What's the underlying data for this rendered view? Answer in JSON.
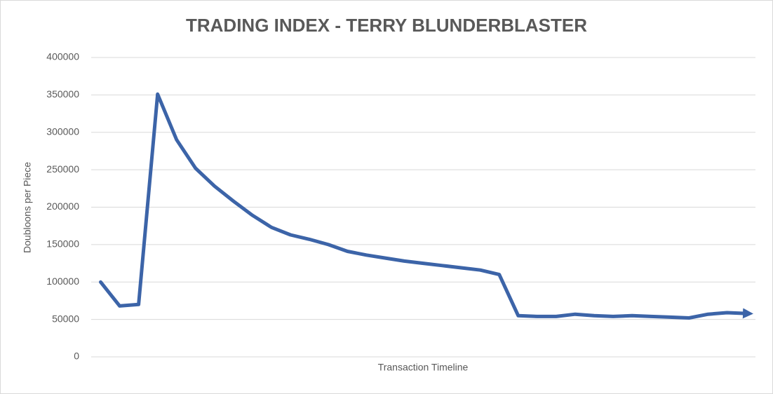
{
  "chart_data": {
    "type": "line",
    "title": "TRADING INDEX - TERRY BLUNDERBLASTER",
    "x_label": "Transaction Timeline",
    "y_label": "Doubloons per Piece",
    "categories": [
      null,
      null,
      null,
      null,
      null,
      null,
      null,
      null,
      null,
      null,
      null,
      null,
      null,
      null,
      null,
      null,
      null,
      null,
      null,
      null,
      null,
      null,
      null,
      null,
      null,
      null,
      null,
      null,
      null,
      null,
      null,
      null,
      null,
      null,
      null
    ],
    "values": [
      100000,
      68000,
      70000,
      351000,
      290000,
      252000,
      228000,
      208000,
      189000,
      173000,
      163000,
      157000,
      150000,
      141000,
      136000,
      132000,
      128000,
      125000,
      122000,
      119000,
      116000,
      110000,
      55000,
      54000,
      54000,
      57000,
      55000,
      54000,
      55000,
      54000,
      53000,
      52000,
      57000,
      59000,
      58000
    ],
    "color": "#3c64a8",
    "ylim": [
      0,
      400000
    ],
    "yticks": [
      0,
      50000,
      100000,
      150000,
      200000,
      250000,
      300000,
      350000,
      400000
    ],
    "grid": true
  }
}
